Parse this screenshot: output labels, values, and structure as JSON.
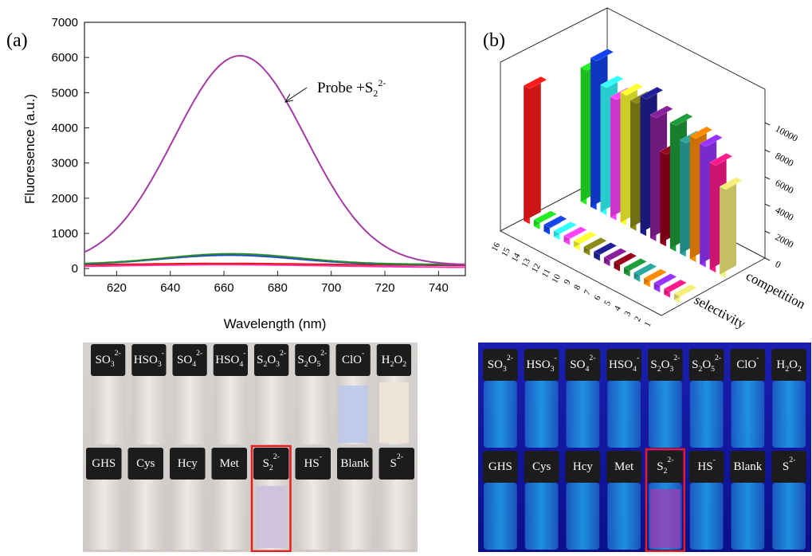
{
  "panel_a": {
    "label": "(a)",
    "annotation": {
      "prefix": "Probe +S",
      "sub": "2",
      "sup": "2-"
    }
  },
  "panel_b": {
    "label": "(b)"
  },
  "chart_data": [
    {
      "type": "line",
      "xlabel": "Wavelength (nm)",
      "ylabel": "Fluoresence (a.u.)",
      "xlim": [
        608,
        750
      ],
      "ylim": [
        -200,
        7000
      ],
      "xticks": [
        620,
        640,
        660,
        680,
        700,
        720,
        740
      ],
      "yticks": [
        0,
        1000,
        2000,
        3000,
        4000,
        5000,
        6000,
        7000
      ],
      "grid": false,
      "series": [
        {
          "color": "#a43aa6",
          "peak_x": 666,
          "peak_y": 6050,
          "sigma": 24.6,
          "baseline": 100
        },
        {
          "color": "#2a8a2a",
          "peak_x": 663,
          "peak_y": 420,
          "sigma": 25,
          "baseline": 120
        },
        {
          "color": "#2244cc",
          "peak_x": 662,
          "peak_y": 380,
          "sigma": 25,
          "baseline": 110
        },
        {
          "color": "#e31a1c",
          "peak_x": 660,
          "peak_y": 145,
          "sigma": 35,
          "baseline": 90
        },
        {
          "color": "#ff33aa",
          "peak_x": 660,
          "peak_y": 110,
          "sigma": 40,
          "baseline": 30
        }
      ]
    },
    {
      "type": "bar",
      "zlim": [
        0,
        10000
      ],
      "zticks": [
        0,
        2000,
        4000,
        6000,
        8000,
        10000
      ],
      "categories": [
        "1",
        "2",
        "3",
        "4",
        "5",
        "6",
        "7",
        "8",
        "9",
        "10",
        "11",
        "12",
        "13",
        "14",
        "15",
        "16"
      ],
      "rows": [
        "selectivity",
        "competition"
      ],
      "selectivity": [
        450,
        420,
        480,
        430,
        460,
        440,
        470,
        420,
        450,
        430,
        480,
        460,
        440,
        500,
        470,
        10000
      ],
      "competition": [
        6500,
        7900,
        8900,
        9100,
        8400,
        9300,
        6800,
        9100,
        10100,
        9400,
        9600,
        8900,
        9400,
        11000,
        9900,
        0
      ],
      "colors": [
        "#f5f07a",
        "#ff1a8c",
        "#9933ff",
        "#ff8c00",
        "#2aa9a3",
        "#1e9e3a",
        "#99001a",
        "#8b1f9b",
        "#1f1f99",
        "#8c8c14",
        "#ffff33",
        "#ff44ff",
        "#33ffff",
        "#1144ee",
        "#22ee22",
        "#ff1a1a"
      ]
    }
  ],
  "photos": {
    "left_top_labels": [
      "SO3^2-",
      "HSO3^-",
      "SO4^2-",
      "HSO4^-",
      "S2O3^2-",
      "S2O5^2-",
      "ClO^-",
      "H2O2"
    ],
    "left_bottom_labels": [
      "GHS",
      "Cys",
      "Hcy",
      "Met",
      "S2^2-",
      "HS^-",
      "Blank",
      "S^2-"
    ],
    "right_top_labels": [
      "SO3^2-",
      "HSO3^-",
      "SO4^2-",
      "HSO4^-",
      "S2O3^2-",
      "S2O5^2-",
      "ClO^-",
      "H2O2"
    ],
    "right_bottom_labels": [
      "GHS",
      "Cys",
      "Hcy",
      "Met",
      "S2^2-",
      "HS^-",
      "Blank",
      "S^2-"
    ],
    "highlight_color": "#e81c1c"
  }
}
